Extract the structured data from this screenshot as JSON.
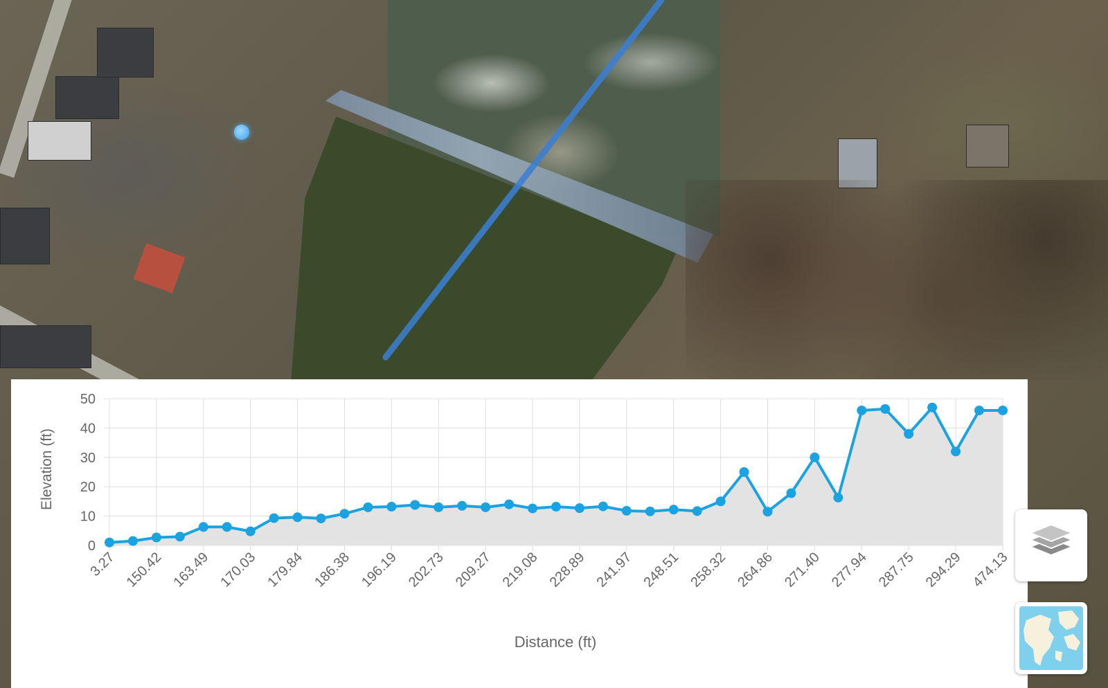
{
  "map": {
    "route_color": "#3a7fd5",
    "marker_color": "#3aa0e8",
    "icons": [
      "location-marker-icon"
    ]
  },
  "controls": {
    "layers_icon": "layers-icon",
    "basemap_icon": "world-map-thumbnail-icon"
  },
  "chart_data": {
    "type": "area",
    "xlabel": "Distance (ft)",
    "ylabel": "Elevation (ft)",
    "ylim": [
      0,
      50
    ],
    "yticks": [
      0,
      10,
      20,
      30,
      40,
      50
    ],
    "x_tick_labels": [
      "3.27",
      "150.42",
      "163.49",
      "170.03",
      "179.84",
      "186.38",
      "196.19",
      "202.73",
      "209.27",
      "219.08",
      "228.89",
      "241.97",
      "248.51",
      "258.32",
      "264.86",
      "271.40",
      "277.94",
      "287.75",
      "294.29",
      "474.13"
    ],
    "grid": true,
    "legend": "none",
    "line_color": "#1aa3e0",
    "fill_color": "#e3e3e3",
    "values": [
      1,
      1.5,
      2.7,
      3,
      6.3,
      6.3,
      4.8,
      9.3,
      9.6,
      9.2,
      10.8,
      13,
      13.2,
      13.8,
      13,
      13.5,
      13,
      14,
      12.6,
      13.2,
      12.7,
      13.3,
      11.8,
      11.6,
      12.2,
      11.7,
      15,
      25,
      11.5,
      17.8,
      30,
      16.3,
      46,
      46.5,
      38,
      47,
      32,
      46,
      46
    ]
  }
}
